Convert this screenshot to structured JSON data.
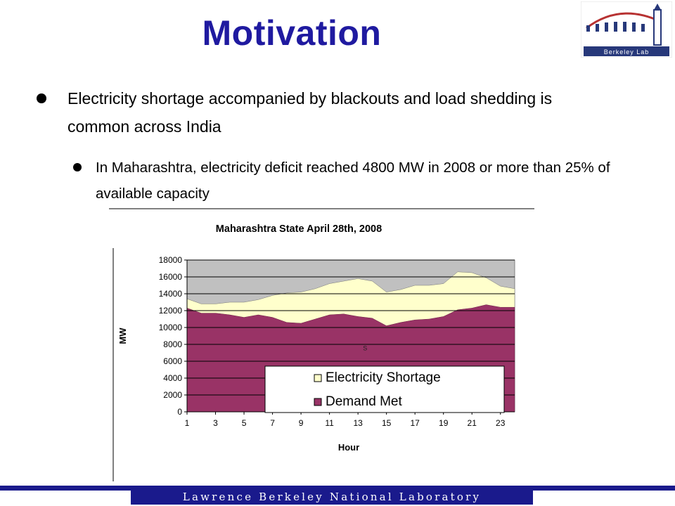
{
  "slide": {
    "title": "Motivation",
    "bullets": [
      {
        "text": "Electricity shortage accompanied by blackouts and load shedding is common across India",
        "sub": [
          {
            "text": "In Maharashtra, electricity deficit reached 4800 MW in 2008 or more than 25% of available capacity"
          }
        ]
      }
    ]
  },
  "logo": {
    "text": "Berkeley Lab",
    "icon": "berkeley-lab-logo"
  },
  "footer": {
    "text": "Lawrence Berkeley National Laboratory"
  },
  "colors": {
    "title": "#1f1aa0",
    "demand_met": "#993366",
    "shortage": "#ffffcc",
    "plot_bg": "#c0c0c0",
    "footer": "#1a1a8c"
  },
  "chart_data": {
    "type": "area",
    "stacked": true,
    "title": "Maharashtra State April 28th, 2008",
    "xlabel": "Hour",
    "ylabel": "MW",
    "ylim": [
      0,
      18000
    ],
    "yticks": [
      0,
      2000,
      4000,
      6000,
      8000,
      10000,
      12000,
      14000,
      16000,
      18000
    ],
    "xticks": [
      1,
      3,
      5,
      7,
      9,
      11,
      13,
      15,
      17,
      19,
      21,
      23
    ],
    "x": [
      1,
      2,
      3,
      4,
      5,
      6,
      7,
      8,
      9,
      10,
      11,
      12,
      13,
      14,
      15,
      16,
      17,
      18,
      19,
      20,
      21,
      22,
      23,
      24
    ],
    "series": [
      {
        "name": "Demand Met",
        "color": "#993366",
        "values": [
          12300,
          11700,
          11700,
          11500,
          11200,
          11500,
          11200,
          10600,
          10500,
          11000,
          11500,
          11600,
          11300,
          11100,
          10200,
          10600,
          10900,
          11000,
          11300,
          12100,
          12300,
          12700,
          12400,
          12400
        ]
      },
      {
        "name": "Electricity Shortage",
        "color": "#ffffcc",
        "values": [
          1100,
          1100,
          1100,
          1500,
          1800,
          1800,
          2600,
          3500,
          3700,
          3600,
          3700,
          3900,
          4500,
          4400,
          4000,
          3900,
          4100,
          4000,
          3900,
          4500,
          4200,
          3200,
          2500,
          2200
        ]
      }
    ],
    "legend": {
      "position": "bottom-right",
      "order": [
        "Electricity Shortage",
        "Demand Met"
      ]
    },
    "annotation": "S"
  }
}
